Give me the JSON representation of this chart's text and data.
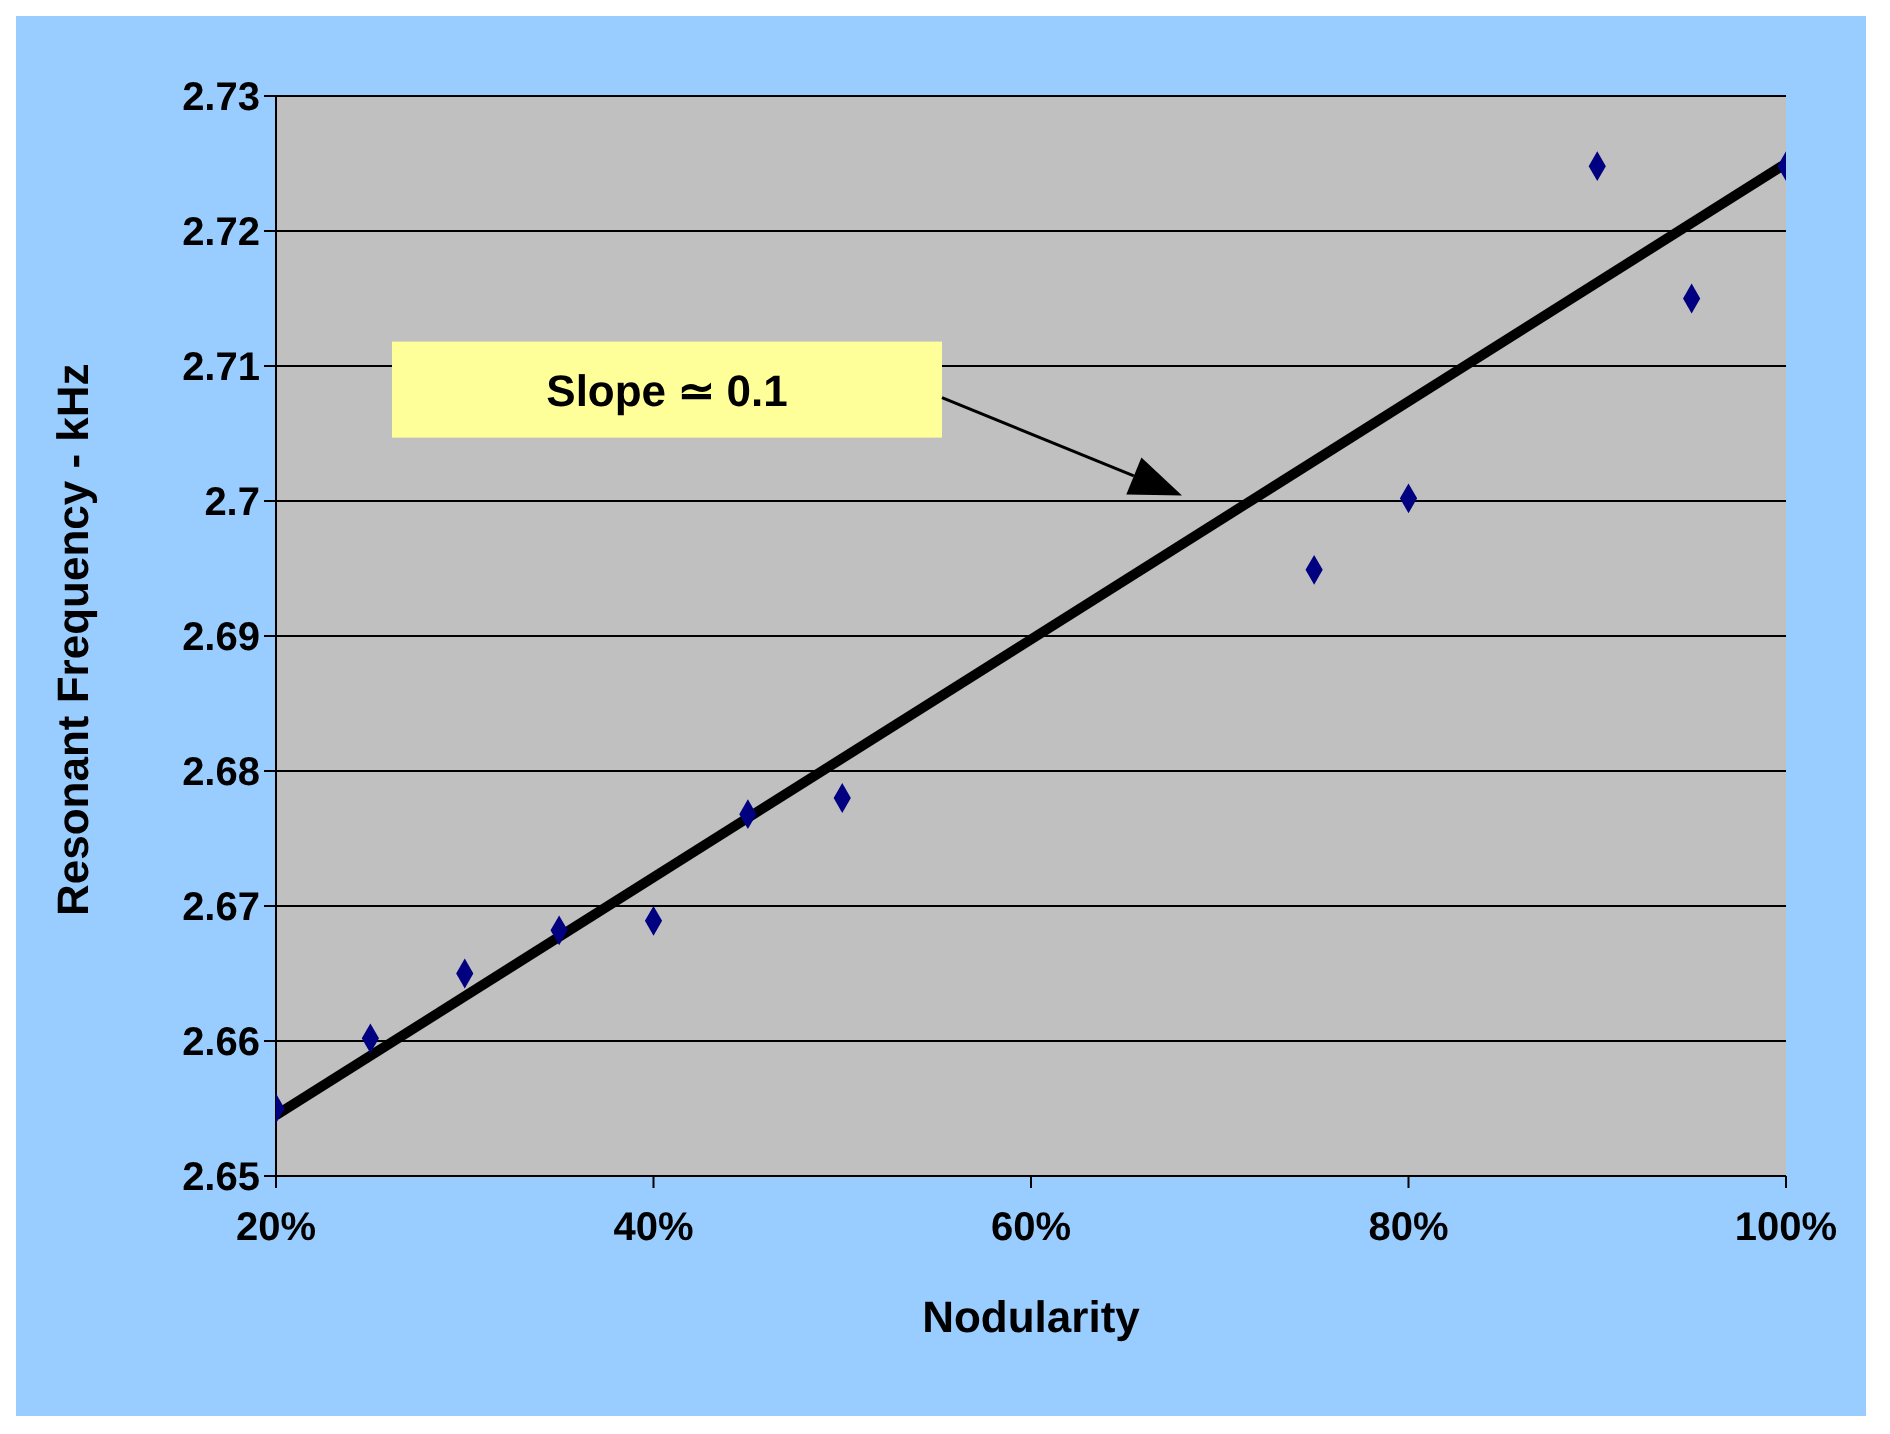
{
  "chart_data": {
    "type": "scatter",
    "xlabel": "Nodularity",
    "ylabel": "Resonant Frequency - kHz",
    "x": [
      20,
      25,
      30,
      35,
      40,
      45,
      50,
      75,
      80,
      90,
      95,
      100
    ],
    "series": [
      {
        "color": "#000080",
        "marker": "diamond",
        "values": [
          2.655,
          2.6602,
          2.665,
          2.6682,
          2.6689,
          2.6768,
          2.678,
          2.6949,
          2.7002,
          2.7248,
          2.715,
          2.7248
        ]
      },
      {
        "type": "line",
        "color": "#000000",
        "marker": "none",
        "x": [
          20,
          100
        ],
        "values": [
          2.6545,
          2.725
        ]
      }
    ],
    "xlim": [
      20,
      100
    ],
    "xticks": [
      {
        "value": 20,
        "label": "20%"
      },
      {
        "value": 40,
        "label": "40%"
      },
      {
        "value": 60,
        "label": "60%"
      },
      {
        "value": 80,
        "label": "80%"
      },
      {
        "value": 100,
        "label": "100%"
      }
    ],
    "ylim": [
      2.65,
      2.73
    ],
    "yticks": [
      2.65,
      2.66,
      2.67,
      2.68,
      2.69,
      2.7,
      2.71,
      2.72,
      2.73
    ],
    "grid": "y",
    "legend": false,
    "annotations": [
      "Slope ≃ 0.1"
    ]
  }
}
